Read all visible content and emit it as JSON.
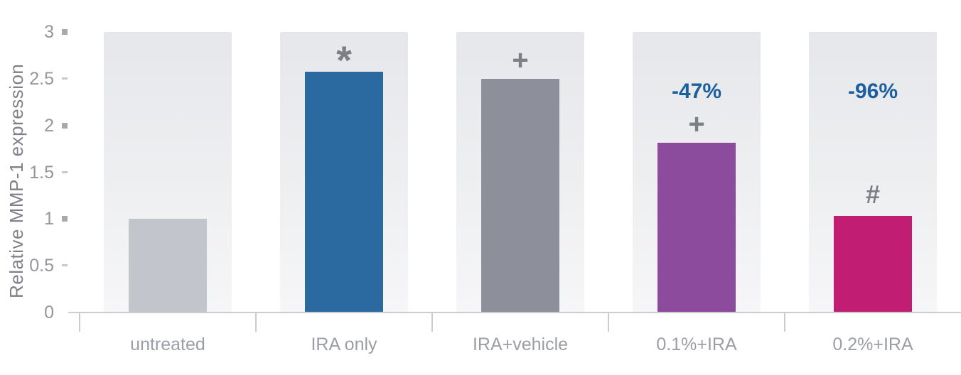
{
  "chart_data": {
    "type": "bar",
    "title": "",
    "ylabel": "Relative MMP-1 expression",
    "xlabel": "",
    "ylim": [
      0,
      3
    ],
    "grid": false,
    "legend": null,
    "ytick_labels": [
      "3",
      "2.5",
      "2",
      "1.5",
      "1",
      "0.5",
      "0"
    ],
    "categories": [
      "untreated",
      "IRA only",
      "IRA+vehicle",
      "0.1%+IRA",
      "0.2%+IRA"
    ],
    "values": [
      1.0,
      2.57,
      2.5,
      1.81,
      1.03
    ],
    "bar_colors": [
      "#c3c5cc",
      "#2a6aa0",
      "#8d909a",
      "#8c4b9d",
      "#c11d72"
    ],
    "annotations": [
      {
        "symbol": "",
        "percent": ""
      },
      {
        "symbol": "*",
        "percent": ""
      },
      {
        "symbol": "+",
        "percent": ""
      },
      {
        "symbol": "+",
        "percent": "-47%"
      },
      {
        "symbol": "#",
        "percent": "-96%"
      }
    ],
    "colors": {
      "percent_label": "#1c5f9f",
      "symbol": "#7c7f86",
      "axis_text": "#94979d"
    }
  }
}
